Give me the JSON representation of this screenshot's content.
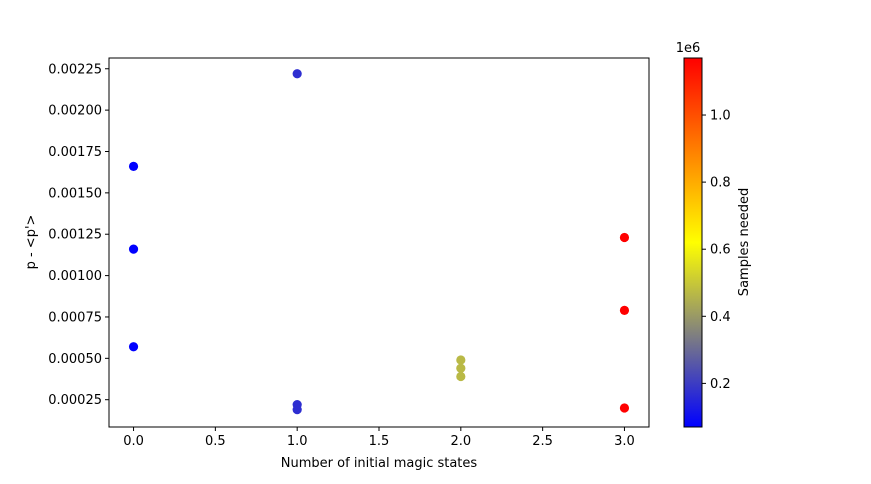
{
  "chart_data": {
    "type": "scatter",
    "title": "",
    "xlabel": "Number of initial magic states",
    "ylabel": "p - <p'>",
    "xlim": [
      -0.15,
      3.15
    ],
    "ylim": [
      8.5e-05,
      0.002315
    ],
    "xticks": [
      "0.0",
      "0.5",
      "1.0",
      "1.5",
      "2.0",
      "2.5",
      "3.0"
    ],
    "xtick_values": [
      0,
      0.5,
      1,
      1.5,
      2,
      2.5,
      3
    ],
    "yticks": [
      "0.00025",
      "0.00050",
      "0.00075",
      "0.00100",
      "0.00125",
      "0.00150",
      "0.00175",
      "0.00200",
      "0.00225"
    ],
    "ytick_values": [
      0.00025,
      0.0005,
      0.00075,
      0.001,
      0.00125,
      0.0015,
      0.00175,
      0.002,
      0.00225
    ],
    "points": [
      {
        "x": 0,
        "y": 0.00166,
        "samples": 70000
      },
      {
        "x": 0,
        "y": 0.00116,
        "samples": 70000
      },
      {
        "x": 0,
        "y": 0.00057,
        "samples": 70000
      },
      {
        "x": 1,
        "y": 0.00222,
        "samples": 170000
      },
      {
        "x": 1,
        "y": 0.00022,
        "samples": 170000
      },
      {
        "x": 1,
        "y": 0.00019,
        "samples": 170000
      },
      {
        "x": 2,
        "y": 0.00049,
        "samples": 470000
      },
      {
        "x": 2,
        "y": 0.00044,
        "samples": 470000
      },
      {
        "x": 2,
        "y": 0.00039,
        "samples": 470000
      },
      {
        "x": 3,
        "y": 0.00123,
        "samples": 1170000
      },
      {
        "x": 3,
        "y": 0.00079,
        "samples": 1170000
      },
      {
        "x": 3,
        "y": 0.0002,
        "samples": 1170000
      }
    ],
    "colorbar": {
      "label": "Samples needed",
      "offset_label": "1e6",
      "range": [
        0.07,
        1.17
      ],
      "ticks": [
        "0.2",
        "0.4",
        "0.6",
        "0.8",
        "1.0"
      ],
      "tick_values": [
        0.2,
        0.4,
        0.6,
        0.8,
        1.0
      ],
      "colormap": [
        "#0000ff",
        "#ffff00",
        "#ff0000"
      ]
    },
    "grid": false,
    "legend": "none"
  }
}
